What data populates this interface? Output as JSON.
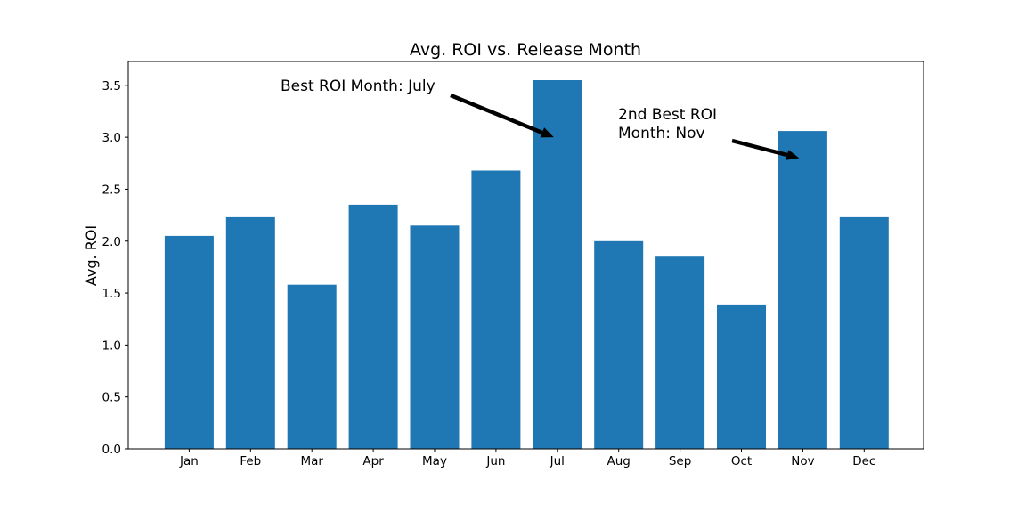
{
  "chart_data": {
    "type": "bar",
    "title": "Avg. ROI vs. Release Month",
    "xlabel": "",
    "ylabel": "Avg. ROI",
    "categories": [
      "Jan",
      "Feb",
      "Mar",
      "Apr",
      "May",
      "Jun",
      "Jul",
      "Aug",
      "Sep",
      "Oct",
      "Nov",
      "Dec"
    ],
    "values": [
      2.05,
      2.23,
      1.58,
      2.35,
      2.15,
      2.68,
      3.55,
      2.0,
      1.85,
      1.39,
      3.06,
      2.23
    ],
    "ylim": [
      0,
      3.73
    ],
    "yticks": [
      "0.0",
      "0.5",
      "1.0",
      "1.5",
      "2.0",
      "2.5",
      "3.0",
      "3.5"
    ],
    "grid": false,
    "bar_color": "#1f77b4",
    "annotations": [
      {
        "lines": [
          "Best ROI Month: July"
        ],
        "target": "Jul",
        "target_value": 3.0
      },
      {
        "lines": [
          "2nd Best ROI",
          "Month: Nov"
        ],
        "target": "Nov",
        "target_value": 2.8
      }
    ]
  }
}
